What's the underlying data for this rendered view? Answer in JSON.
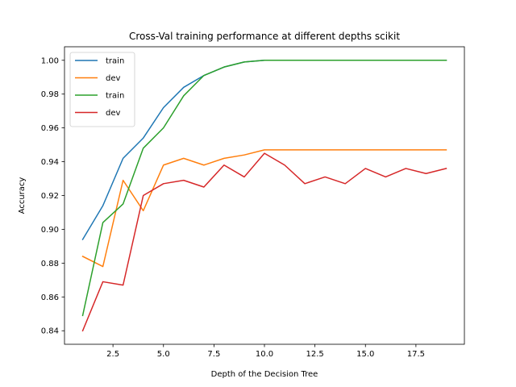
{
  "chart_data": {
    "type": "line",
    "title": "Cross-Val training performance at different depths scikit",
    "xlabel": "Depth of the Decision Tree",
    "ylabel": "Accuracy",
    "xlim": [
      0.1,
      19.9
    ],
    "ylim": [
      0.832,
      1.008
    ],
    "xticks": [
      2.5,
      5.0,
      7.5,
      10.0,
      12.5,
      15.0,
      17.5
    ],
    "xtick_labels": [
      "2.5",
      "5.0",
      "7.5",
      "10.0",
      "12.5",
      "15.0",
      "17.5"
    ],
    "yticks": [
      0.84,
      0.86,
      0.88,
      0.9,
      0.92,
      0.94,
      0.96,
      0.98,
      1.0
    ],
    "ytick_labels": [
      "0.84",
      "0.86",
      "0.88",
      "0.90",
      "0.92",
      "0.94",
      "0.96",
      "0.98",
      "1.00"
    ],
    "grid": false,
    "legend_position": "top-left",
    "x": [
      1,
      2,
      3,
      4,
      5,
      6,
      7,
      8,
      9,
      10,
      11,
      12,
      13,
      14,
      15,
      16,
      17,
      18,
      19
    ],
    "series": [
      {
        "name": "train",
        "color": "#1f77b4",
        "values": [
          0.894,
          0.914,
          0.942,
          0.954,
          0.972,
          0.984,
          0.991,
          0.996,
          0.999,
          1.0,
          1.0,
          1.0,
          1.0,
          1.0,
          1.0,
          1.0,
          1.0,
          1.0,
          1.0
        ]
      },
      {
        "name": "dev",
        "color": "#ff7f0e",
        "values": [
          0.884,
          0.878,
          0.929,
          0.911,
          0.938,
          0.942,
          0.938,
          0.942,
          0.944,
          0.947,
          0.947,
          0.947,
          0.947,
          0.947,
          0.947,
          0.947,
          0.947,
          0.947,
          0.947
        ]
      },
      {
        "name": "train",
        "color": "#2ca02c",
        "values": [
          0.849,
          0.904,
          0.915,
          0.948,
          0.96,
          0.979,
          0.991,
          0.996,
          0.999,
          1.0,
          1.0,
          1.0,
          1.0,
          1.0,
          1.0,
          1.0,
          1.0,
          1.0,
          1.0
        ]
      },
      {
        "name": "dev",
        "color": "#d62728",
        "values": [
          0.84,
          0.869,
          0.867,
          0.92,
          0.927,
          0.929,
          0.925,
          0.938,
          0.931,
          0.945,
          0.938,
          0.927,
          0.931,
          0.927,
          0.936,
          0.931,
          0.936,
          0.933,
          0.936
        ]
      }
    ]
  }
}
